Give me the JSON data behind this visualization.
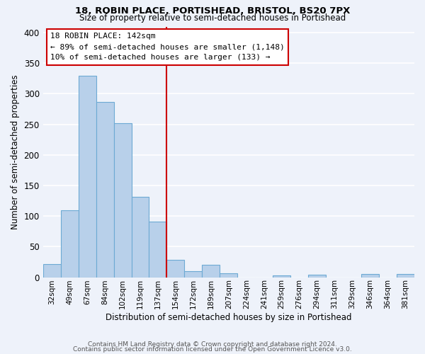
{
  "title1": "18, ROBIN PLACE, PORTISHEAD, BRISTOL, BS20 7PX",
  "title2": "Size of property relative to semi-detached houses in Portishead",
  "bar_labels": [
    "32sqm",
    "49sqm",
    "67sqm",
    "84sqm",
    "102sqm",
    "119sqm",
    "137sqm",
    "154sqm",
    "172sqm",
    "189sqm",
    "207sqm",
    "224sqm",
    "241sqm",
    "259sqm",
    "276sqm",
    "294sqm",
    "311sqm",
    "329sqm",
    "346sqm",
    "364sqm",
    "381sqm"
  ],
  "bar_values": [
    22,
    110,
    330,
    287,
    252,
    131,
    91,
    28,
    10,
    20,
    6,
    0,
    0,
    3,
    0,
    4,
    0,
    0,
    5,
    0,
    5
  ],
  "bar_color": "#b8d0ea",
  "bar_edge_color": "#6daad4",
  "marker_label": "18 ROBIN PLACE: 142sqm",
  "annotation_line1": "← 89% of semi-detached houses are smaller (1,148)",
  "annotation_line2": "10% of semi-detached houses are larger (133) →",
  "vline_color": "#cc0000",
  "xlabel": "Distribution of semi-detached houses by size in Portishead",
  "ylabel": "Number of semi-detached properties",
  "ylim": [
    0,
    410
  ],
  "yticks": [
    0,
    50,
    100,
    150,
    200,
    250,
    300,
    350,
    400
  ],
  "footer1": "Contains HM Land Registry data © Crown copyright and database right 2024.",
  "footer2": "Contains public sector information licensed under the Open Government Licence v3.0.",
  "bg_color": "#eef2fa",
  "plot_bg_color": "#eef2fa",
  "grid_color": "#ffffff",
  "box_color": "#cc0000",
  "title1_fontsize": 9.5,
  "title2_fontsize": 8.5
}
